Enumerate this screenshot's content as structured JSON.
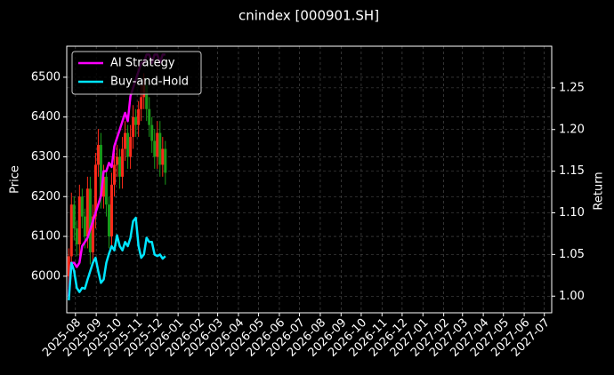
{
  "chart_data": {
    "type": "candlestick-lines",
    "title": "cnindex [000901.SH]",
    "ylabel": "Price",
    "y2label": "Return",
    "x": [
      -10,
      -6,
      -2,
      2,
      6,
      10,
      14,
      18,
      22,
      26,
      30,
      34,
      38,
      42,
      46,
      50,
      54,
      58,
      62,
      66,
      70,
      74,
      78,
      82,
      86,
      90,
      94,
      98,
      102,
      106,
      110,
      114,
      118,
      122,
      126,
      130,
      134
    ],
    "open": [
      6000,
      6050,
      6180,
      6120,
      6080,
      6200,
      6150,
      6100,
      6220,
      6060,
      6150,
      6280,
      6330,
      6200,
      6250,
      6180,
      6100,
      6230,
      6280,
      6300,
      6250,
      6320,
      6360,
      6300,
      6350,
      6400,
      6380,
      6420,
      6450,
      6480,
      6420,
      6380,
      6340,
      6300,
      6360,
      6280,
      6320
    ],
    "high": [
      6070,
      6210,
      6200,
      6140,
      6230,
      6220,
      6170,
      6250,
      6250,
      6180,
      6310,
      6370,
      6360,
      6280,
      6270,
      6200,
      6260,
      6310,
      6330,
      6320,
      6350,
      6390,
      6380,
      6380,
      6430,
      6420,
      6440,
      6480,
      6510,
      6500,
      6450,
      6400,
      6370,
      6390,
      6390,
      6350,
      6340
    ],
    "low": [
      5970,
      6020,
      6090,
      6050,
      6050,
      6120,
      6070,
      6070,
      6030,
      6030,
      6120,
      6250,
      6170,
      6170,
      6150,
      6070,
      6070,
      6200,
      6250,
      6220,
      6220,
      6290,
      6270,
      6270,
      6320,
      6350,
      6350,
      6390,
      6420,
      6390,
      6350,
      6310,
      6270,
      6270,
      6250,
      6250,
      6230
    ],
    "close": [
      6050,
      6180,
      6120,
      6080,
      6200,
      6150,
      6100,
      6220,
      6060,
      6150,
      6280,
      6330,
      6200,
      6250,
      6180,
      6100,
      6230,
      6280,
      6300,
      6250,
      6320,
      6360,
      6300,
      6350,
      6400,
      6380,
      6420,
      6450,
      6480,
      6420,
      6380,
      6340,
      6300,
      6360,
      6280,
      6320,
      6260
    ],
    "up_color": "#ff2a1a",
    "down_color": "#1a9a1a",
    "series": [
      {
        "name": "AI Strategy",
        "color": "#ff00ff",
        "axis": "y2",
        "values": [
          1.0,
          1.04,
          1.04,
          1.035,
          1.04,
          1.06,
          1.065,
          1.07,
          1.08,
          1.09,
          1.1,
          1.11,
          1.12,
          1.15,
          1.15,
          1.16,
          1.155,
          1.18,
          1.19,
          1.2,
          1.21,
          1.22,
          1.21,
          1.24,
          1.25,
          1.26,
          1.27,
          1.28,
          1.28,
          1.29,
          1.29,
          1.28,
          1.29,
          1.29,
          1.28,
          1.29,
          1.29
        ]
      },
      {
        "name": "Buy-and-Hold",
        "color": "#00e5ff",
        "axis": "y2",
        "values": [
          0.995,
          1.04,
          1.03,
          1.01,
          1.005,
          1.01,
          1.009,
          1.02,
          1.03,
          1.04,
          1.046,
          1.03,
          1.016,
          1.02,
          1.04,
          1.051,
          1.06,
          1.055,
          1.073,
          1.06,
          1.055,
          1.065,
          1.06,
          1.07,
          1.09,
          1.094,
          1.06,
          1.046,
          1.05,
          1.07,
          1.065,
          1.065,
          1.05,
          1.048,
          1.05,
          1.045,
          1.048
        ]
      }
    ],
    "xlim": [
      -13,
      710
    ],
    "xticks": [
      {
        "value": 0,
        "label": "2025-08"
      },
      {
        "value": 31,
        "label": "2025-09"
      },
      {
        "value": 61,
        "label": "2025-10"
      },
      {
        "value": 92,
        "label": "2025-11"
      },
      {
        "value": 122,
        "label": "2025-12"
      },
      {
        "value": 153,
        "label": "2026-01"
      },
      {
        "value": 184,
        "label": "2026-02"
      },
      {
        "value": 212,
        "label": "2026-03"
      },
      {
        "value": 243,
        "label": "2026-04"
      },
      {
        "value": 273,
        "label": "2026-05"
      },
      {
        "value": 304,
        "label": "2026-06"
      },
      {
        "value": 334,
        "label": "2026-07"
      },
      {
        "value": 365,
        "label": "2026-08"
      },
      {
        "value": 396,
        "label": "2026-09"
      },
      {
        "value": 426,
        "label": "2026-10"
      },
      {
        "value": 457,
        "label": "2026-11"
      },
      {
        "value": 487,
        "label": "2026-12"
      },
      {
        "value": 518,
        "label": "2027-01"
      },
      {
        "value": 549,
        "label": "2027-02"
      },
      {
        "value": 577,
        "label": "2027-03"
      },
      {
        "value": 608,
        "label": "2027-04"
      },
      {
        "value": 638,
        "label": "2027-05"
      },
      {
        "value": 669,
        "label": "2027-06"
      },
      {
        "value": 699,
        "label": "2027-07"
      }
    ],
    "ylim": [
      5908,
      6578
    ],
    "yticks": [
      6000,
      6100,
      6200,
      6300,
      6400,
      6500
    ],
    "y2lim": [
      0.98,
      1.3
    ],
    "y2ticks": [
      {
        "value": 1,
        "label": "1.00"
      },
      1.05,
      {
        "value": 1.1,
        "label": "1.10"
      },
      1.15,
      {
        "value": 1.2,
        "label": "1.20"
      },
      1.25
    ],
    "grid": true,
    "legend": "upper left"
  }
}
